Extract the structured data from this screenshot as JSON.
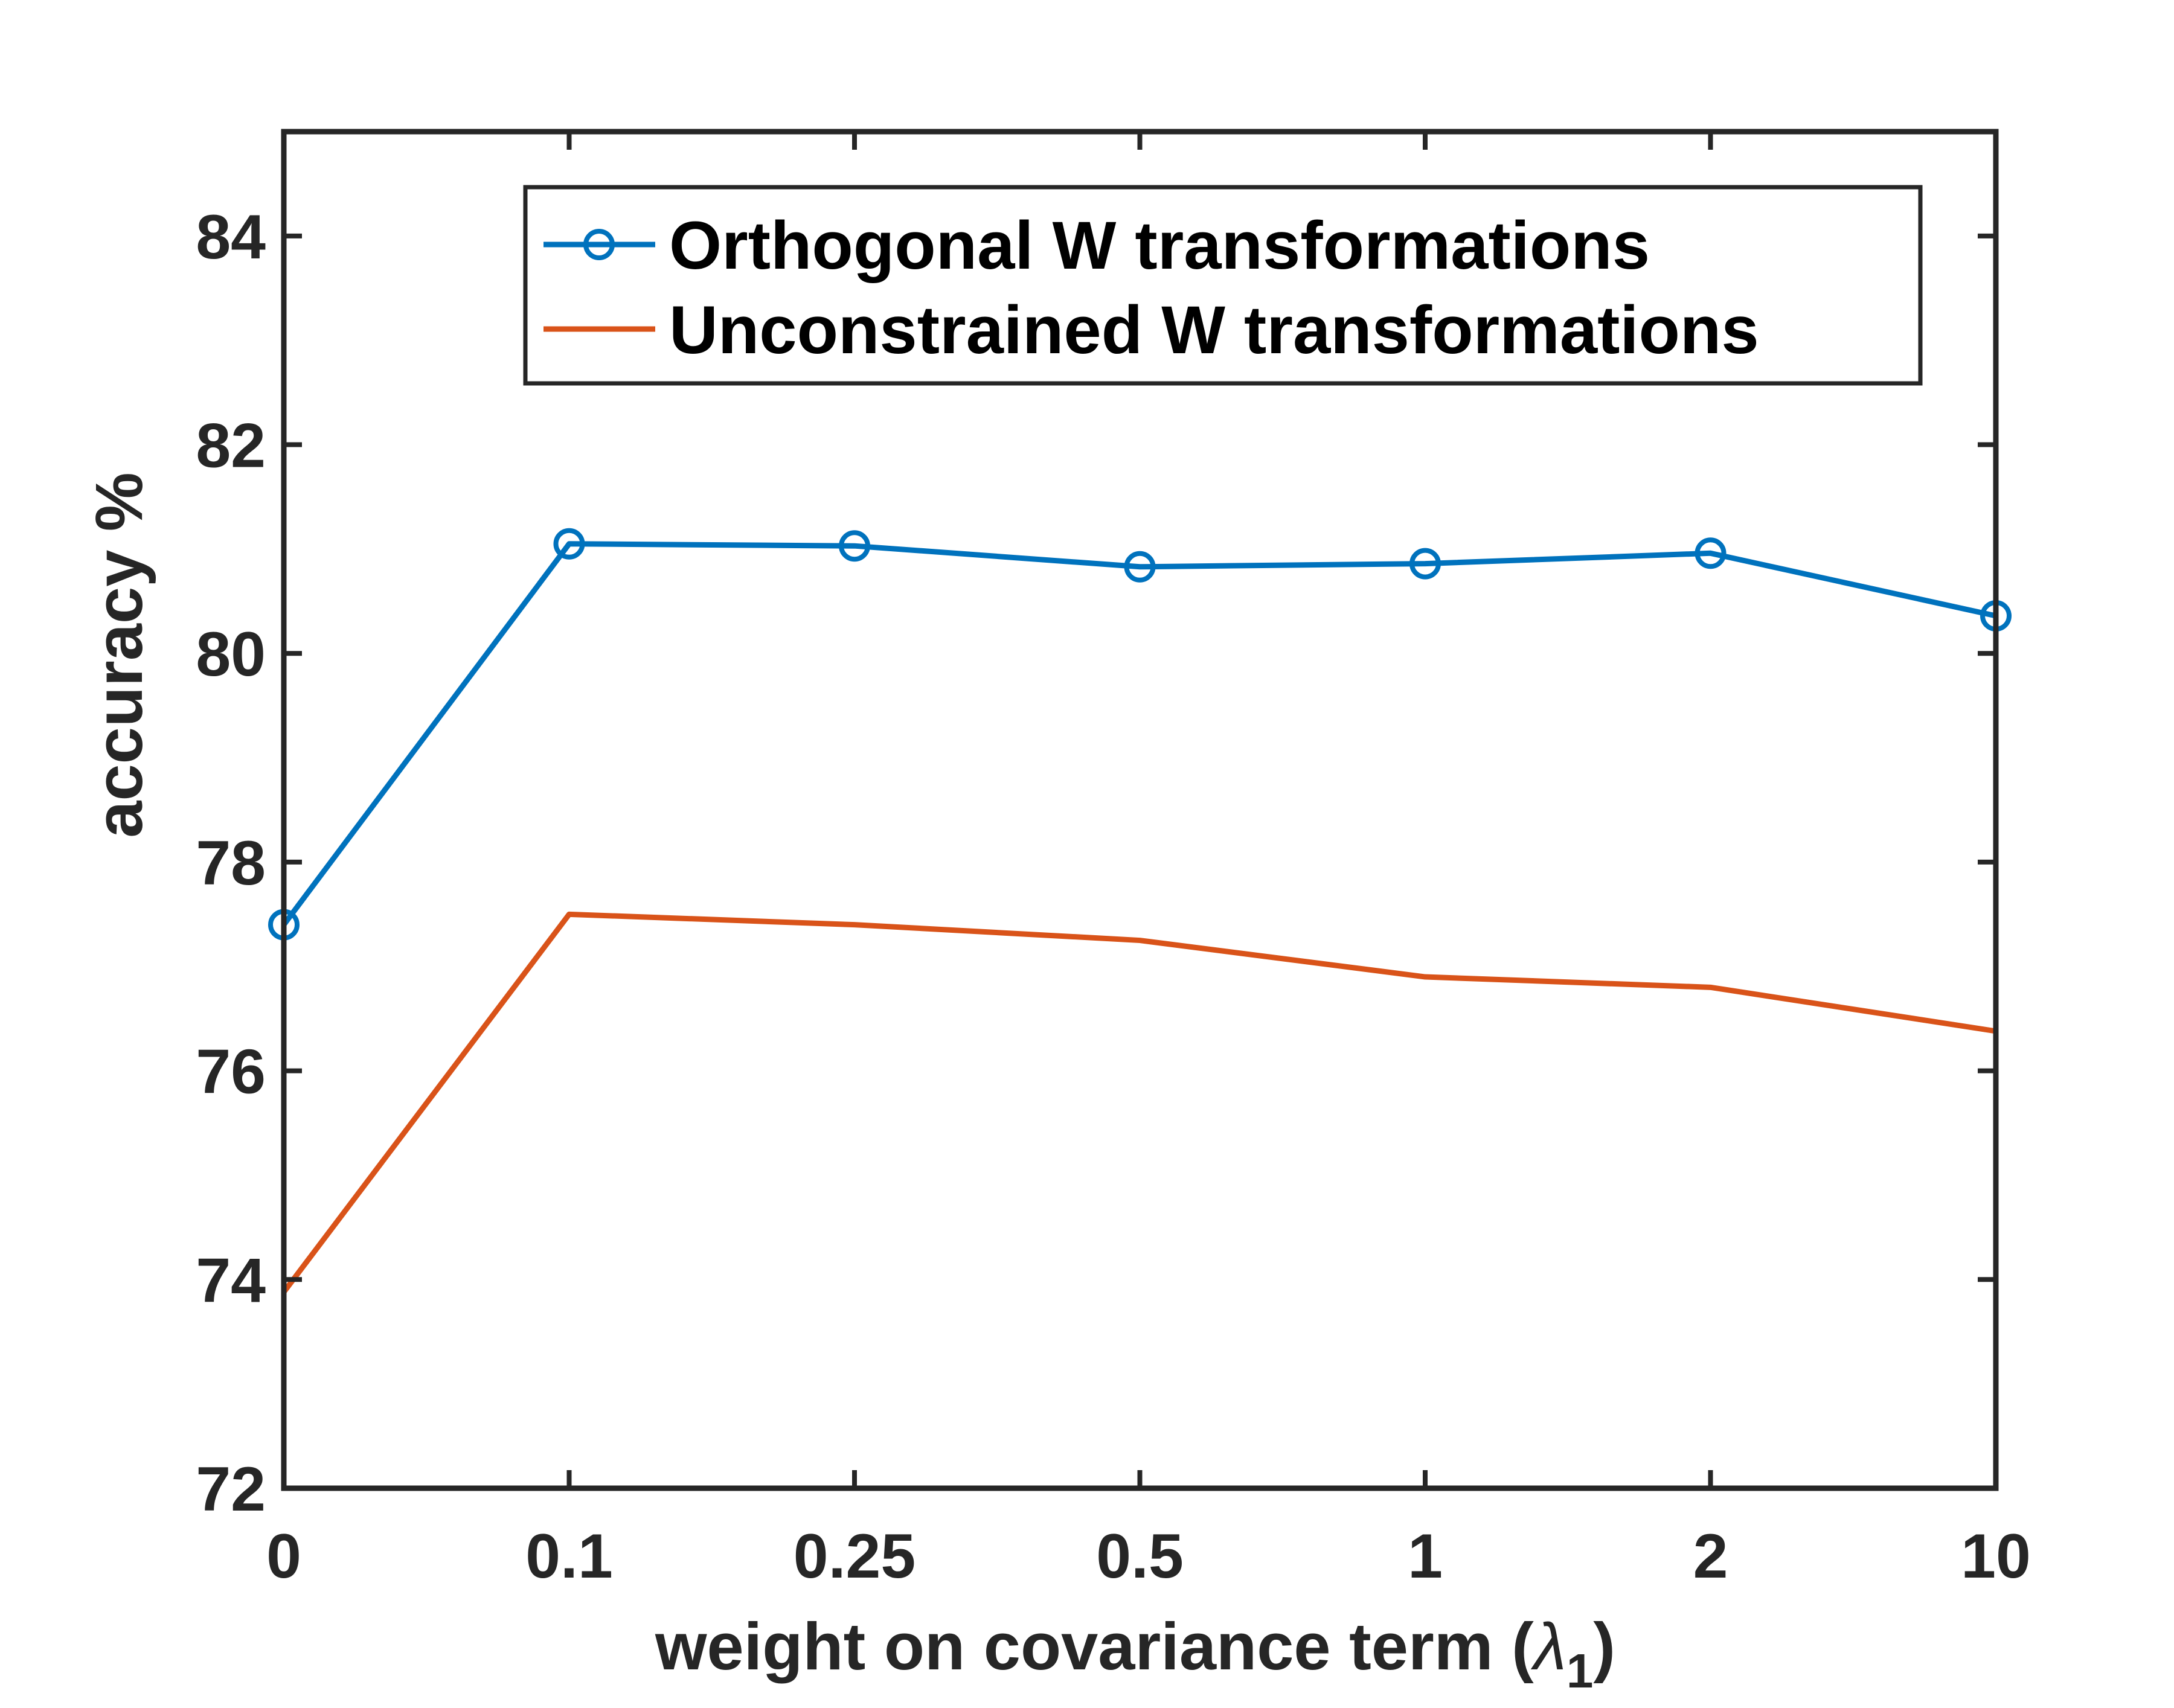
{
  "chart_data": {
    "type": "line",
    "categories": [
      "0",
      "0.1",
      "0.25",
      "0.5",
      "1",
      "2",
      "10"
    ],
    "xlabel": "weight on covariance term (",
    "xlabel_symbol": "λ",
    "xlabel_subscript": "1",
    "xlabel_close": ")",
    "ylabel": "accuracy %",
    "ylim": [
      72,
      85
    ],
    "yticks": [
      "72",
      "74",
      "76",
      "78",
      "80",
      "82",
      "84"
    ],
    "grid": false,
    "legend_position": "top-right",
    "series": [
      {
        "name": "Orthogonal W transformations",
        "values": [
          77.4,
          81.05,
          81.03,
          80.83,
          80.86,
          80.96,
          80.36
        ],
        "color": "#0072BD",
        "marker": "circle"
      },
      {
        "name": "Unconstrained W transformations",
        "values": [
          73.88,
          77.5,
          77.4,
          77.25,
          76.9,
          76.8,
          76.38
        ],
        "color": "#D95319",
        "marker": "none"
      }
    ]
  }
}
